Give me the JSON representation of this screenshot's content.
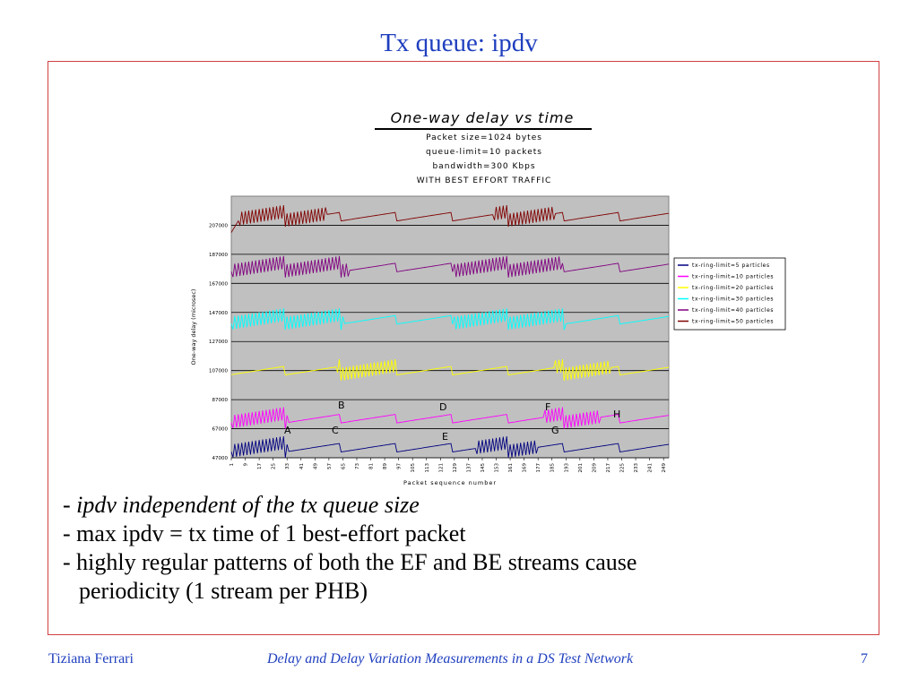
{
  "slide": {
    "title": "Tx queue: ipdv",
    "bullets": [
      {
        "prefix": "- ",
        "text": "ipdv independent of the tx queue size",
        "italic": true
      },
      {
        "prefix": "- ",
        "text": "max ipdv = tx time of 1 best-effort packet",
        "italic": false
      },
      {
        "prefix": "- ",
        "text": "highly regular patterns of both the EF and BE streams cause",
        "italic": false
      },
      {
        "prefix": "",
        "text": "periodicity (1 stream per PHB)",
        "italic": false
      }
    ]
  },
  "footer": {
    "author": "Tiziana Ferrari",
    "title": "Delay and Delay Variation Measurements in a DS Test Network",
    "page": "7"
  },
  "chart_data": {
    "type": "line",
    "title": "One-way delay vs time",
    "subtitle_lines": [
      "Packet size=1024 bytes",
      "queue-limit=10 packets",
      "bandwidth=300 Kbps",
      "WITH BEST EFFORT TRAFFIC"
    ],
    "xlabel": "Packet sequence number",
    "ylabel": "One-way delay (microsec)",
    "ylim": [
      47000,
      227000
    ],
    "xlim": [
      1,
      252
    ],
    "y_ticks": [
      "47000",
      "67000",
      "87000",
      "107000",
      "127000",
      "147000",
      "167000",
      "187000",
      "207000"
    ],
    "x_ticks": [
      "1",
      "9",
      "17",
      "25",
      "33",
      "41",
      "49",
      "57",
      "65",
      "73",
      "81",
      "89",
      "97",
      "105",
      "113",
      "121",
      "129",
      "137",
      "145",
      "153",
      "161",
      "169",
      "177",
      "185",
      "193",
      "201",
      "209",
      "217",
      "225",
      "233",
      "241",
      "249"
    ],
    "plot_background": "#c0c0c0",
    "grid": true,
    "legend_position": "right",
    "series": [
      {
        "name": "tx-ring-limit=5 particles",
        "color": "#000080",
        "base": 51000
      },
      {
        "name": "tx-ring-limit=10 particles",
        "color": "#ff00ff",
        "base": 71000
      },
      {
        "name": "tx-ring-limit=20 particles",
        "color": "#ffff00",
        "base": 104000
      },
      {
        "name": "tx-ring-limit=30 particles",
        "color": "#00ffff",
        "base": 139000
      },
      {
        "name": "tx-ring-limit=40 particles",
        "color": "#800080",
        "base": 175000
      },
      {
        "name": "tx-ring-limit=50 particles",
        "color": "#800000",
        "base": 210000
      }
    ],
    "annotations": [
      "A",
      "B",
      "C",
      "D",
      "E",
      "F",
      "G",
      "H"
    ]
  }
}
